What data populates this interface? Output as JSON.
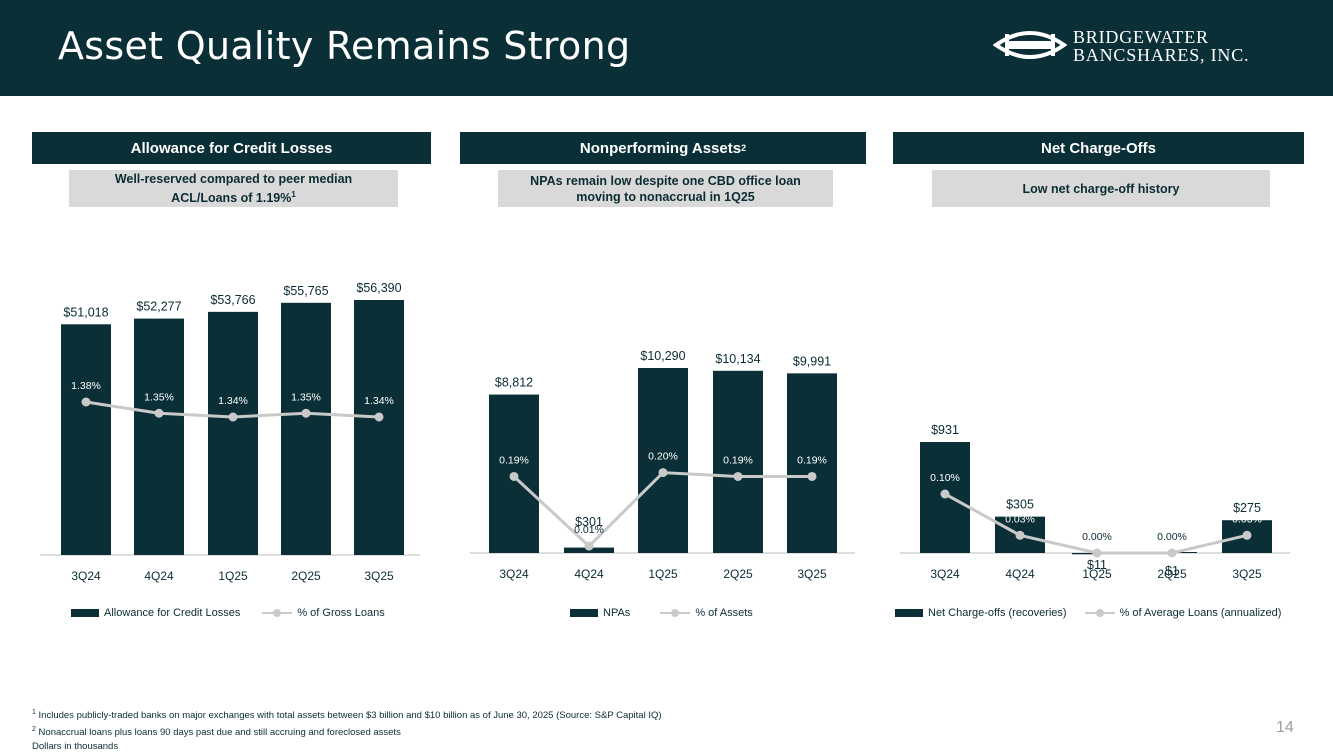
{
  "page": {
    "title": "Asset Quality Remains Strong",
    "page_number": "14",
    "logo_line1": "BRIDGEWATER",
    "logo_line2": "BANCSHARES, INC."
  },
  "colors": {
    "bar": "#0b2f36",
    "line": "#c9c9c9",
    "header": "#0b2f36",
    "subtitle_bg": "#d9d9d9"
  },
  "panels": [
    {
      "header": "Allowance for Credit Losses",
      "header_sup": "",
      "subtitle_line1": "Well-reserved compared to peer median",
      "subtitle_line2": "ACL/Loans of 1.19%",
      "subtitle_sup": "1"
    },
    {
      "header": "Nonperforming Assets",
      "header_sup": "2",
      "subtitle_line1": "NPAs remain low despite one CBD office loan",
      "subtitle_line2": "moving to nonaccrual in 1Q25",
      "subtitle_sup": ""
    },
    {
      "header": "Net Charge-Offs",
      "header_sup": "",
      "subtitle_line1": "Low net charge-off history",
      "subtitle_line2": "",
      "subtitle_sup": ""
    }
  ],
  "chart_data": [
    {
      "type": "bar",
      "title": "Allowance for Credit Losses",
      "categories": [
        "3Q24",
        "4Q24",
        "1Q25",
        "2Q25",
        "3Q25"
      ],
      "series": [
        {
          "name": "Allowance for Credit Losses",
          "kind": "bar",
          "values": [
            51018,
            52277,
            53766,
            55765,
            56390
          ],
          "labels": [
            "$51,018",
            "$52,277",
            "$53,766",
            "$55,765",
            "$56,390"
          ]
        },
        {
          "name": "% of Gross Loans",
          "kind": "line",
          "values": [
            1.38,
            1.35,
            1.34,
            1.35,
            1.34
          ],
          "labels": [
            "1.38%",
            "1.35%",
            "1.34%",
            "1.35%",
            "1.34%"
          ]
        }
      ],
      "units": "Dollars in thousands"
    },
    {
      "type": "bar",
      "title": "Nonperforming Assets",
      "categories": [
        "3Q24",
        "4Q24",
        "1Q25",
        "2Q25",
        "3Q25"
      ],
      "series": [
        {
          "name": "NPAs",
          "kind": "bar",
          "values": [
            8812,
            301,
            10290,
            10134,
            9991
          ],
          "labels": [
            "$8,812",
            "$301",
            "$10,290",
            "$10,134",
            "$9,991"
          ]
        },
        {
          "name": "% of Assets",
          "kind": "line",
          "values": [
            0.19,
            0.01,
            0.2,
            0.19,
            0.19
          ],
          "labels": [
            "0.19%",
            "0.01%",
            "0.20%",
            "0.19%",
            "0.19%"
          ]
        }
      ],
      "units": "Dollars in thousands"
    },
    {
      "type": "bar",
      "title": "Net Charge-Offs",
      "categories": [
        "3Q24",
        "4Q24",
        "1Q25",
        "2Q25",
        "3Q25"
      ],
      "series": [
        {
          "name": "Net Charge-offs (recoveries)",
          "kind": "bar",
          "values": [
            931,
            305,
            -11,
            1,
            275
          ],
          "labels": [
            "$931",
            "$305",
            "$11",
            "$1",
            "$275"
          ]
        },
        {
          "name": "% of Average Loans (annualized)",
          "kind": "line",
          "values": [
            0.1,
            0.03,
            0.0,
            0.0,
            0.03
          ],
          "labels": [
            "0.10%",
            "0.03%",
            "0.00%",
            "0.00%",
            "0.03%"
          ]
        }
      ],
      "units": "Dollars in thousands"
    }
  ],
  "footnotes": {
    "note1_sup": "1",
    "note1": "Includes publicly-traded banks on major exchanges with total assets between $3 billion and $10 billion as of June 30, 2025 (Source: S&P Capital IQ)",
    "note2_sup": "2",
    "note2": "Nonaccrual loans plus loans 90 days past due and still accruing and foreclosed assets",
    "note3": "Dollars in thousands"
  }
}
